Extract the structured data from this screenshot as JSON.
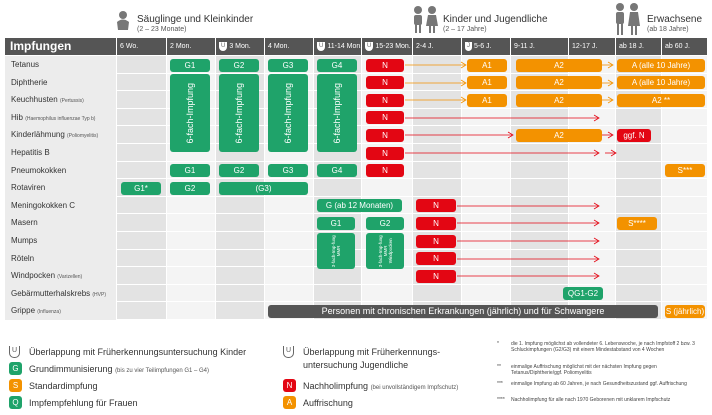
{
  "groups": {
    "infants": {
      "title": "Säuglinge und Kleinkinder",
      "sub": "(2 – 23 Monate)"
    },
    "youth": {
      "title": "Kinder und Jugendliche",
      "sub": "(2 – 17 Jahre)"
    },
    "adults": {
      "title": "Erwachsene",
      "sub": "(ab 18 Jahre)"
    }
  },
  "header": {
    "title": "Impfungen",
    "ages": [
      "6 Wo.",
      "2 Mon.",
      "3 Mon.",
      "4 Mon.",
      "11-14 Mon.",
      "15-23 Mon.",
      "2-4 J.",
      "5-6 J.",
      "9-11 J.",
      "12-17 J.",
      "ab 18 J.",
      "ab 60 J."
    ],
    "u_badge": "U",
    "j_badge": "J"
  },
  "rows": [
    {
      "label": "Tetanus",
      "sub": ""
    },
    {
      "label": "Diphtherie",
      "sub": ""
    },
    {
      "label": "Keuchhusten",
      "sub": "(Pertussis)"
    },
    {
      "label": "Hib",
      "sub": "(Haemophilus influenzae Typ b)"
    },
    {
      "label": "Kinderlähmung",
      "sub": "(Poliomyelitis)"
    },
    {
      "label": "Hepatitis B",
      "sub": ""
    },
    {
      "label": "Pneumokokken",
      "sub": ""
    },
    {
      "label": "Rotaviren",
      "sub": ""
    },
    {
      "label": "Meningokokken C",
      "sub": ""
    },
    {
      "label": "Masern",
      "sub": ""
    },
    {
      "label": "Mumps",
      "sub": ""
    },
    {
      "label": "Röteln",
      "sub": ""
    },
    {
      "label": "Windpocken",
      "sub": "(Varizellen)"
    },
    {
      "label": "Gebärmutterhalskrebs",
      "sub": "(HVP)"
    },
    {
      "label": "Grippe",
      "sub": "(Influenza)"
    }
  ],
  "cells": {
    "g1": "G1",
    "g2": "G2",
    "g3": "G3",
    "g4": "G4",
    "g3_paren": "(G3)",
    "g1_star": "G1*",
    "six_fach": "6-fach-Impfung",
    "n": "N",
    "a1": "A1",
    "a2": "A2",
    "a2_star": "A2 **",
    "a_10": "A (alle 10 Jahre)",
    "ggf_n": "ggf. N",
    "s_triple": "S***",
    "s_quad": "S****",
    "s_yearly": "S (jährlich)",
    "g_ab12": "G (ab 12 Monaten)",
    "g1_mmr": "G1",
    "g2_mmr": "G2",
    "mmr_text": "3-fach-Imp-fung MMR",
    "mmr_text2": "3-fach-Imp-fung MMR Windpocken",
    "qg1g2": "QG1-G2",
    "chronic": "Personen mit chronischen Erkrankungen (jährlich) und für Schwangere"
  },
  "legend": {
    "u_kinder": "Überlappung mit Früherkennungsuntersuchung Kinder",
    "u_jugend_1": "Überlappung mit Früherkennungs-",
    "u_jugend_2": "untersuchung Jugendliche",
    "g_main": "Grundimmunisierung",
    "g_sub": "(bis zu vier Teilimpfungen G1 – G4)",
    "s": "Standardimpfung",
    "q": "Impfempfehlung für Frauen",
    "n_main": "Nachholimpfung",
    "n_sub": "(bei unvollständigem Impfschutz)",
    "a": "Auffrischung",
    "u_letter": "U",
    "j_letter": "J",
    "g_letter": "G",
    "s_letter": "S",
    "q_letter": "Q",
    "n_letter": "N",
    "a_letter": "A"
  },
  "notes": [
    {
      "mark": "*",
      "text": "die 1. Impfung möglichst ab vollendeter 6. Lebenswoche, je nach Impfstoff 2 bzw. 3 Schluckimpfungen (G2/G3) mit einem Mindestabstand von 4 Wochen"
    },
    {
      "mark": "**",
      "text": "einmalige Auffrischung möglichst mit der nächsten Impfung gegen Tetanus/Diphtherie/ggf. Poliomyelitis"
    },
    {
      "mark": "***",
      "text": "einmalige Impfung ab 60 Jahren, je nach Gesundheitszustand ggf. Auffrischung"
    },
    {
      "mark": "****",
      "text": "Nachholimpfung für alle nach 1970 Geborenen mit unklarem Impfschutz"
    }
  ],
  "colors": {
    "green": "#1fa36a",
    "red": "#e30613",
    "orange": "#f39200",
    "header": "#555555",
    "shade": "#e8e8e8"
  },
  "icons": [
    "baby-icon",
    "children-icon",
    "adults-icon",
    "arrow-right-icon"
  ]
}
